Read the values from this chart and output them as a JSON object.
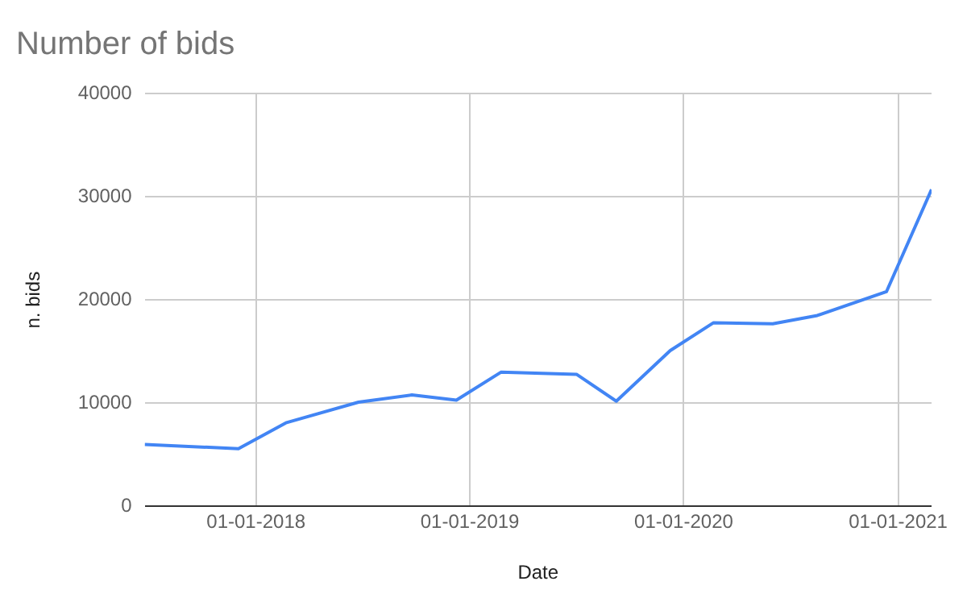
{
  "chart_data": {
    "type": "line",
    "title": "Number of bids",
    "xlabel": "Date",
    "ylabel": "n. bids",
    "x": [
      "2017-06-25",
      "2017-12-02",
      "2018-02-21",
      "2018-06-25",
      "2018-09-24",
      "2018-12-09",
      "2019-02-23",
      "2019-07-02",
      "2019-09-08",
      "2019-12-09",
      "2020-02-21",
      "2020-06-01",
      "2020-08-16",
      "2020-12-12",
      "2021-02-27"
    ],
    "series": [
      {
        "color": "#4285f4",
        "values": [
          6000,
          5600,
          8100,
          10100,
          10800,
          10300,
          13000,
          12800,
          10200,
          15100,
          17800,
          17700,
          18500,
          20800,
          30700
        ]
      }
    ],
    "xlim": [
      "2017-06-25",
      "2021-02-27"
    ],
    "xticks": [
      {
        "value": "2018-01-01",
        "label": "01-01-2018"
      },
      {
        "value": "2019-01-01",
        "label": "01-01-2019"
      },
      {
        "value": "2020-01-01",
        "label": "01-01-2020"
      },
      {
        "value": "2021-01-01",
        "label": "01-01-2021"
      }
    ],
    "ylim": [
      0,
      40000
    ],
    "yticks": [
      0,
      10000,
      20000,
      30000,
      40000
    ],
    "grid": true,
    "legend": false,
    "marker": "none",
    "line_style": "solid"
  }
}
